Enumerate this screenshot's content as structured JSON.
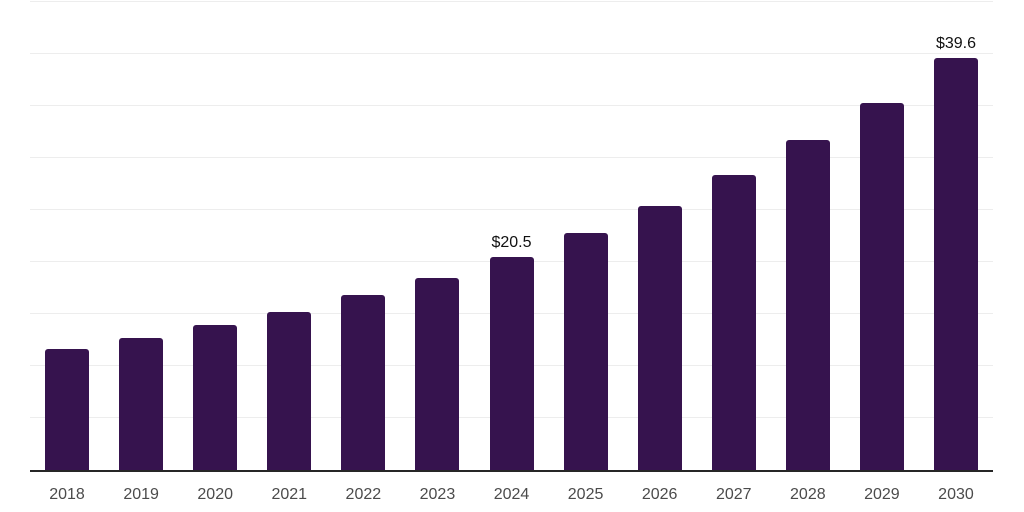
{
  "chart_data": {
    "type": "bar",
    "title": "",
    "xlabel": "",
    "ylabel": "",
    "categories": [
      "2018",
      "2019",
      "2020",
      "2021",
      "2022",
      "2023",
      "2024",
      "2025",
      "2026",
      "2027",
      "2028",
      "2029",
      "2030"
    ],
    "values": [
      11.6,
      12.7,
      13.9,
      15.2,
      16.8,
      18.5,
      20.5,
      22.8,
      25.4,
      28.4,
      31.7,
      35.3,
      39.6
    ],
    "data_labels": {
      "2024": "$20.5",
      "2030": "$39.6"
    },
    "ylim": [
      0,
      45
    ],
    "grid_step": 5,
    "grid": "horizontal-only",
    "legend_position": "none",
    "y_tick_labels_visible": false,
    "colors": {
      "bar": "#36134e",
      "gridline": "#ededed",
      "axis_line": "#262626",
      "tick_label": "#4b4b4b",
      "data_label": "#111111",
      "background": "#ffffff"
    }
  }
}
